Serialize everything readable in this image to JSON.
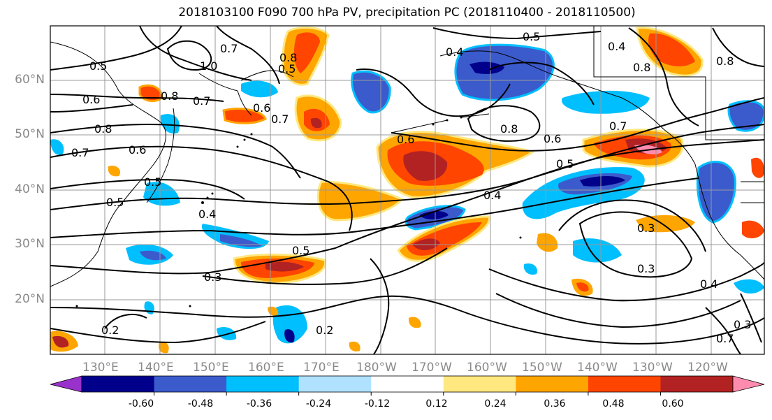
{
  "title": "2018103100 F090 700 hPa PV, precipitation PC (2018110400 - 2018110500)",
  "lat_labels": [
    "60°N",
    "50°N",
    "40°N",
    "30°N",
    "20°N"
  ],
  "lon_labels": [
    "130°E",
    "140°E",
    "150°E",
    "160°E",
    "170°E",
    "180°W",
    "170°W",
    "160°W",
    "150°W",
    "140°W",
    "130°W",
    "120°W"
  ],
  "contour_labels": [
    "0.5",
    "0.7",
    "1.0",
    "0.8",
    "0.7",
    "0.6",
    "0.8",
    "0.7",
    "0.6",
    "0.5",
    "0.4",
    "0.5",
    "0.6",
    "0.5",
    "0.7",
    "0.6",
    "0.8",
    "0.5",
    "0.4",
    "0.4",
    "0.8",
    "0.6",
    "0.5",
    "0.3",
    "0.5",
    "0.4",
    "0.3",
    "0.2",
    "0.2",
    "0.3",
    "0.7",
    "0.4",
    "0.7",
    "0.8",
    "0.8",
    "0.3"
  ],
  "colorbar": {
    "colors": [
      "#9932cc",
      "#00008b",
      "#3b5bcc",
      "#00bfff",
      "#b0e2ff",
      "#ffffff",
      "#ffe87f",
      "#ffa500",
      "#ff4500",
      "#b22222",
      "#ff8caf"
    ],
    "tick_labels": [
      "-0.60",
      "-0.48",
      "-0.36",
      "-0.24",
      "-0.12",
      "0.12",
      "0.24",
      "0.36",
      "0.48",
      "0.60"
    ]
  },
  "colors": {
    "shade_neg_light": "#b0e2ff",
    "shade_neg": "#00bfff",
    "shade_neg_mid": "#3b5bcc",
    "shade_neg_dark": "#00008b",
    "shade_pos_light": "#ffe87f",
    "shade_pos": "#ffa500",
    "shade_pos_mid": "#ff4500",
    "shade_pos_dark": "#b22222",
    "shade_pos_max": "#ff8caf"
  }
}
